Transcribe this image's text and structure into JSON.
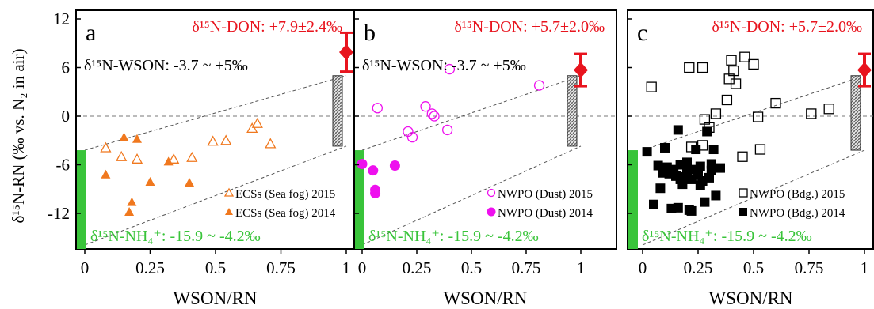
{
  "figure": {
    "ylabel": "δ¹⁵N-RN (‰ vs. N₂ in air)",
    "xlabel": "WSON/RN",
    "y_ticks": [
      12,
      6,
      0,
      -6,
      -12
    ],
    "x_ticks": [
      0,
      0.25,
      0.5,
      0.75,
      1
    ],
    "colors": {
      "don": "#e8141e",
      "nh4": "#39c43a",
      "orange": "#f0781e",
      "magenta": "#ee10ee",
      "black": "#000000",
      "dashed": "#555555"
    }
  },
  "chart_data": [
    {
      "type": "scatter",
      "panel_letter": "a",
      "don_label": "δ¹⁵N-DON: +7.9±2.4‰",
      "wson_label": "δ¹⁵N-WSON: -3.7 ~ +5‰",
      "nh4_label": "δ¹⁵N-NH₄⁺: -15.9 ~ -4.2‰",
      "xlim": [
        -0.02,
        1.05
      ],
      "ylim": [
        -15.9,
        12.5
      ],
      "marker_color": "#f0781e",
      "don_point": {
        "x": 1,
        "y": 7.9,
        "err": 2.4
      },
      "wson_range": [
        -3.7,
        5
      ],
      "nh4_range": [
        -15.9,
        -4.2
      ],
      "series": [
        {
          "name": "ECSs (Sea fog) 2015",
          "marker": "open-triangle",
          "x": [
            0.08,
            0.14,
            0.2,
            0.34,
            0.41,
            0.49,
            0.54,
            0.64,
            0.66,
            0.71
          ],
          "y": [
            -3.9,
            -5.0,
            -5.3,
            -5.3,
            -5.1,
            -3.1,
            -3.0,
            -1.5,
            -0.9,
            -3.4
          ]
        },
        {
          "name": "ECSs (Sea fog) 2014",
          "marker": "filled-triangle",
          "x": [
            0.08,
            0.15,
            0.18,
            0.2,
            0.25,
            0.32,
            0.4,
            0.17
          ],
          "y": [
            -7.2,
            -2.6,
            -10.6,
            -2.8,
            -8.1,
            -5.6,
            -8.2,
            -11.8
          ]
        }
      ]
    },
    {
      "type": "scatter",
      "panel_letter": "b",
      "don_label": "δ¹⁵N-DON: +5.7±2.0‰",
      "wson_label": "δ¹⁵N-WSON: -3.7 ~ +5‰",
      "nh4_label": "δ¹⁵N-NH₄⁺: -15.9 ~ -4.2‰",
      "xlim": [
        -0.02,
        1.05
      ],
      "ylim": [
        -15.9,
        12.5
      ],
      "marker_color": "#ee10ee",
      "don_point": {
        "x": 1,
        "y": 5.7,
        "err": 2.0
      },
      "wson_range": [
        -3.7,
        5
      ],
      "nh4_range": [
        -15.9,
        -4.2
      ],
      "series": [
        {
          "name": "NWPO (Dust) 2015",
          "marker": "open-circle",
          "x": [
            0.07,
            0.21,
            0.23,
            0.29,
            0.32,
            0.33,
            0.39,
            0.4,
            0.81
          ],
          "y": [
            1.0,
            -1.9,
            -2.6,
            1.2,
            0.3,
            0.0,
            -1.7,
            5.8,
            3.8
          ]
        },
        {
          "name": "NWPO (Dust) 2014",
          "marker": "filled-circle",
          "x": [
            0.0,
            0.05,
            0.06,
            0.15,
            0.06
          ],
          "y": [
            -5.9,
            -6.7,
            -9.1,
            -6.1,
            -9.5
          ]
        }
      ]
    },
    {
      "type": "scatter",
      "panel_letter": "c",
      "don_label": "δ¹⁵N-DON: +5.7±2.0‰",
      "wson_label": "",
      "nh4_label": "δ¹⁵N-NH₄⁺: -15.9 ~ -4.2‰",
      "xlim": [
        -0.02,
        1.05
      ],
      "ylim": [
        -15.9,
        12.5
      ],
      "marker_color": "#000000",
      "don_point": {
        "x": 1,
        "y": 5.7,
        "err": 2.0
      },
      "wson_range": [
        -4.2,
        5
      ],
      "nh4_range": [
        -15.9,
        -4.2
      ],
      "series": [
        {
          "name": "NWPO (Bdg.) 2015",
          "marker": "open-square",
          "x": [
            0.04,
            0.21,
            0.27,
            0.28,
            0.3,
            0.38,
            0.39,
            0.4,
            0.41,
            0.42,
            0.45,
            0.46,
            0.5,
            0.52,
            0.53,
            0.6,
            0.76,
            0.84,
            0.27,
            0.33,
            0.22
          ],
          "y": [
            3.6,
            6.0,
            6.0,
            -0.4,
            -1.4,
            2.0,
            4.6,
            6.9,
            5.6,
            4.0,
            -5.0,
            7.3,
            6.4,
            -0.1,
            -4.1,
            1.6,
            0.3,
            0.9,
            -3.6,
            0.3,
            -3.8
          ]
        },
        {
          "name": "NWPO (Bdg.) 2014",
          "marker": "filled-square",
          "x": [
            0.02,
            0.05,
            0.07,
            0.08,
            0.09,
            0.1,
            0.12,
            0.13,
            0.14,
            0.15,
            0.16,
            0.17,
            0.17,
            0.18,
            0.19,
            0.2,
            0.21,
            0.22,
            0.23,
            0.24,
            0.25,
            0.26,
            0.27,
            0.28,
            0.29,
            0.3,
            0.31,
            0.32,
            0.33,
            0.35,
            0.16,
            0.22,
            0.2,
            0.11,
            0.26,
            0.31
          ],
          "y": [
            -4.4,
            -10.9,
            -6.1,
            -8.9,
            -7.0,
            -3.9,
            -7.1,
            -11.4,
            -6.6,
            -7.4,
            -1.7,
            -7.8,
            -6.0,
            -8.4,
            -7.5,
            -5.7,
            -11.6,
            -7.8,
            -6.6,
            -4.1,
            -7.3,
            -6.2,
            -8.0,
            -10.6,
            -1.9,
            -7.6,
            -6.7,
            -4.1,
            -9.8,
            -6.4,
            -11.3,
            -11.7,
            -6.8,
            -6.3,
            -8.5,
            -5.9
          ]
        }
      ]
    }
  ]
}
